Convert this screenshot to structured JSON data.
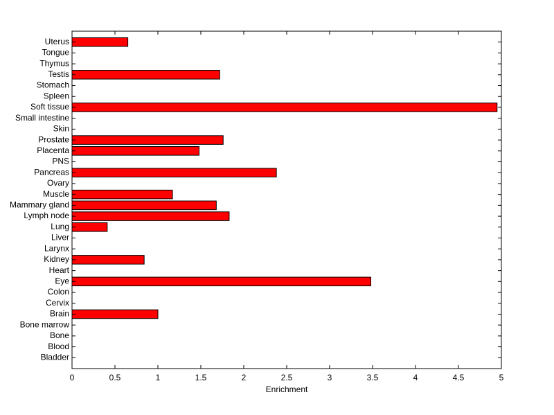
{
  "chart_data": {
    "type": "barh",
    "xlabel": "Enrichment",
    "categories": [
      "Bladder",
      "Blood",
      "Bone",
      "Bone marrow",
      "Brain",
      "Cervix",
      "Colon",
      "Eye",
      "Heart",
      "Kidney",
      "Larynx",
      "Liver",
      "Lung",
      "Lymph node",
      "Mammary gland",
      "Muscle",
      "Ovary",
      "Pancreas",
      "PNS",
      "Placenta",
      "Prostate",
      "Skin",
      "Small intestine",
      "Soft tissue",
      "Spleen",
      "Stomach",
      "Testis",
      "Thymus",
      "Tongue",
      "Uterus"
    ],
    "values": [
      0,
      0,
      0,
      0,
      1.0,
      0,
      0,
      3.48,
      0,
      0.84,
      0,
      0,
      0.41,
      1.83,
      1.68,
      1.17,
      0,
      2.38,
      0,
      1.48,
      1.76,
      0,
      0,
      4.95,
      0,
      0,
      1.72,
      0,
      0,
      0.65
    ],
    "color": "#ff0000",
    "xlim": [
      0,
      5
    ],
    "xticks": [
      0,
      0.5,
      1,
      1.5,
      2,
      2.5,
      3,
      3.5,
      4,
      4.5,
      5
    ],
    "grid": false
  }
}
